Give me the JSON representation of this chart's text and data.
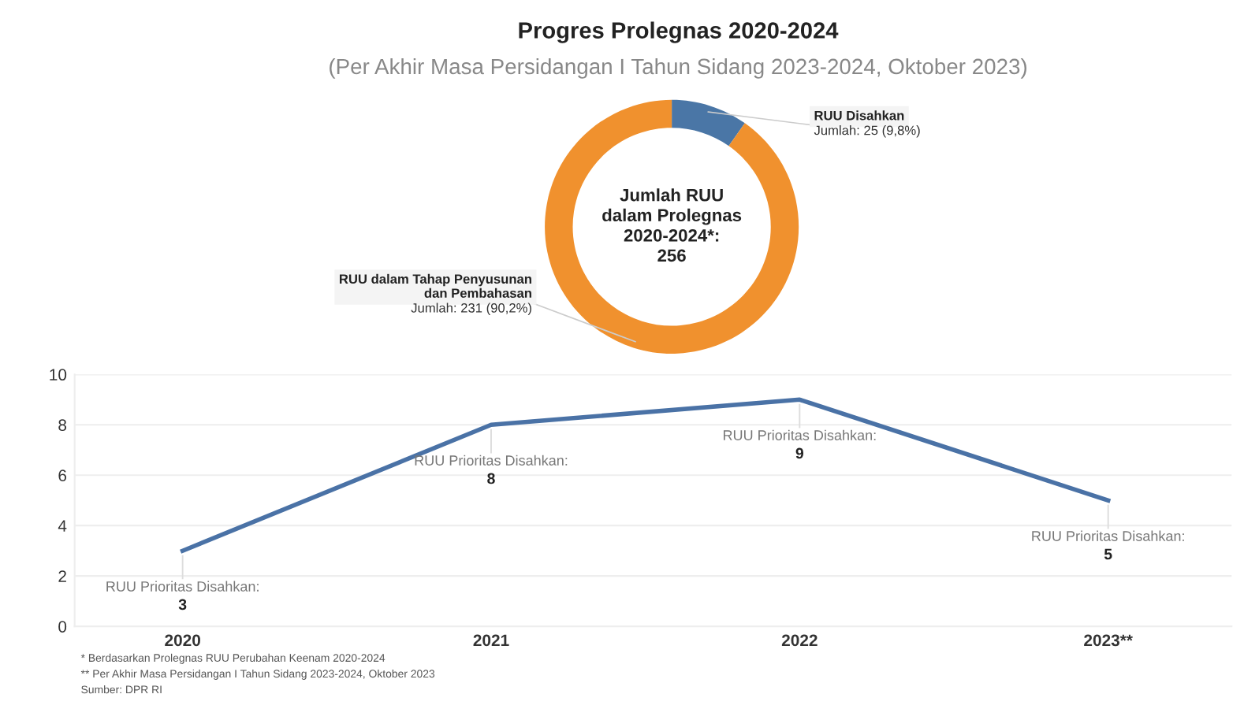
{
  "chart_data": [
    {
      "type": "donut",
      "title": "Progres Prolegnas 2020-2024",
      "subtitle": "(Per Akhir Masa Persidangan I Tahun Sidang 2023-2024, Oktober 2023)",
      "categories": [
        "RUU Disahkan",
        "RUU dalam Tahap Penyusunan dan Pembahasan"
      ],
      "values": [
        25,
        231
      ],
      "colors": [
        "#4a76a6",
        "#f0912e"
      ],
      "value_labels": [
        "Jumlah: 25 (9,8%)",
        "Jumlah: 231 (90,2%)"
      ],
      "annotations": [
        "Jumlah RUU\ndalam Prolegnas\n2020-2024*:\n256"
      ]
    },
    {
      "type": "line",
      "categories": [
        "2020",
        "2021",
        "2022",
        "2023**"
      ],
      "series": [
        {
          "color": "#4a72a6",
          "values": [
            3,
            8,
            9,
            5
          ]
        }
      ],
      "value_labels": [
        "RUU Prioritas Disahkan:\n3",
        "RUU Prioritas Disahkan:\n8",
        "RUU Prioritas Disahkan:\n9",
        "RUU Prioritas Disahkan:\n5"
      ],
      "ylim": [
        0,
        10
      ],
      "yticks": [
        0,
        2,
        4,
        6,
        8,
        10
      ],
      "grid": "y",
      "annotations": [
        "* Berdasarkan Prolegnas RUU Perubahan Keenam 2020-2024",
        "** Per Akhir Masa Persidangan I Tahun Sidang 2023-2024, Oktober 2023",
        "Sumber: DPR RI"
      ]
    }
  ]
}
